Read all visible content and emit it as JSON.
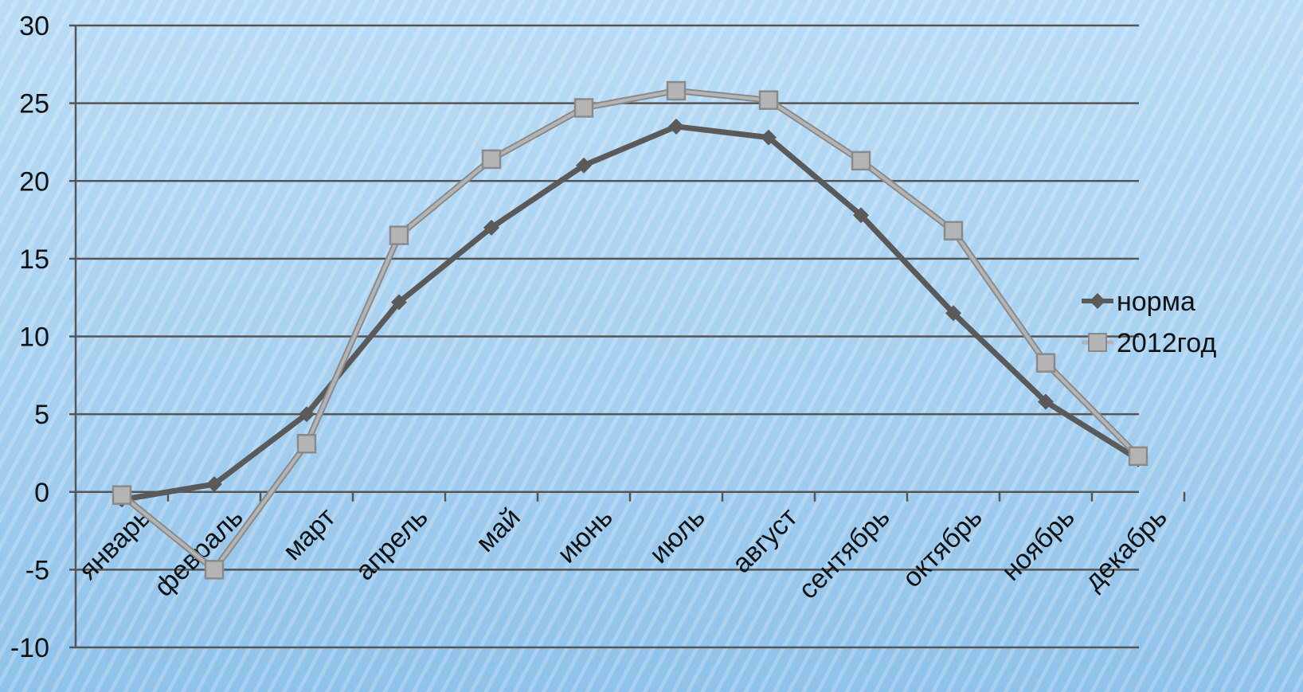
{
  "chart_data": {
    "type": "line",
    "categories": [
      "январь",
      "февраль",
      "март",
      "апрель",
      "май",
      "июнь",
      "июль",
      "август",
      "сентябрь",
      "октябрь",
      "ноябрь",
      "декабрь"
    ],
    "series": [
      {
        "name": "норма",
        "values": [
          -0.5,
          0.5,
          5.0,
          12.2,
          17.0,
          21.0,
          23.5,
          22.8,
          17.8,
          11.5,
          5.8,
          2.1
        ],
        "color": "#5a5a5a",
        "marker": "diamond"
      },
      {
        "name": "2012год",
        "values": [
          -0.2,
          -5.0,
          3.1,
          16.5,
          21.4,
          24.7,
          25.8,
          25.2,
          21.3,
          16.8,
          8.3,
          2.3
        ],
        "color": "#b4b4b4",
        "marker": "square"
      }
    ],
    "yticks": [
      "30",
      "25",
      "20",
      "15",
      "10",
      "5",
      "0",
      "-5",
      "-10"
    ],
    "ylim": [
      -10,
      30
    ],
    "grid": true,
    "legend_position": "right",
    "title": "",
    "xlabel": "",
    "ylabel": ""
  }
}
